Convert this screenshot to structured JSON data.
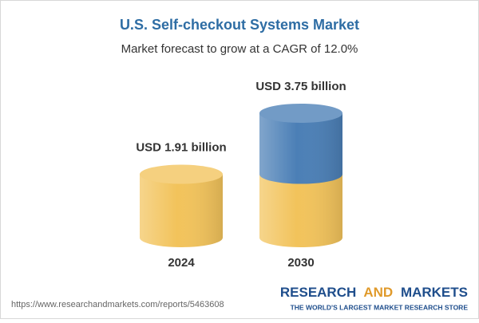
{
  "chart_data": {
    "type": "cylinder",
    "title": "U.S. Self-checkout Systems Market",
    "subtitle": "Market forecast to grow at a CAGR of 12.0%",
    "categories": [
      "2024",
      "2030"
    ],
    "values": [
      1.91,
      3.75
    ],
    "value_labels": [
      "USD 1.91 billion",
      "USD 3.75 billion"
    ],
    "color": "#f2c35b",
    "growth_color": "#4b7fb6"
  },
  "source": "https://www.researchandmarkets.com/reports/5463608",
  "brand": {
    "parts": [
      "RESEARCH",
      "AND",
      "MARKETS"
    ],
    "tagline": "THE WORLD'S LARGEST MARKET RESEARCH STORE"
  }
}
